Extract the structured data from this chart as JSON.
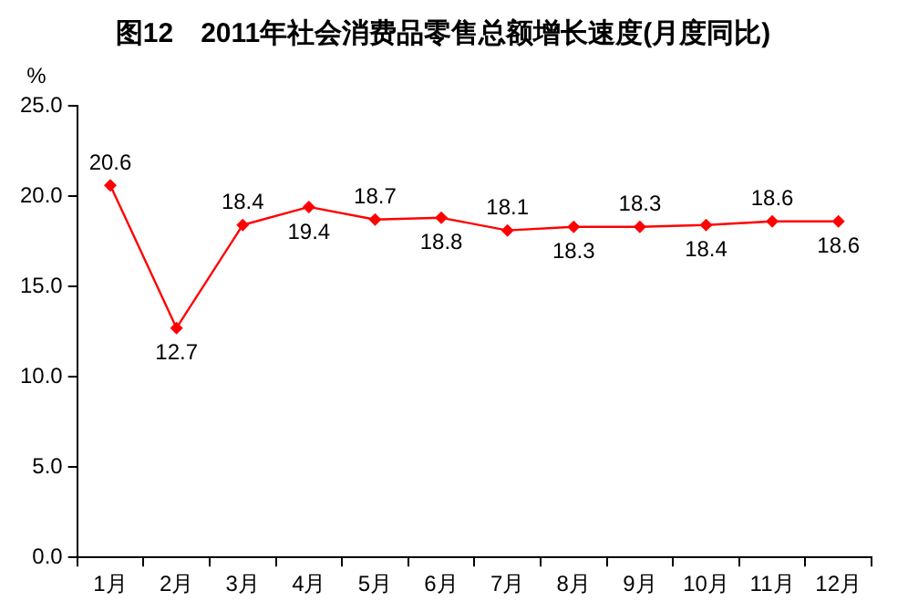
{
  "chart_data": {
    "type": "line",
    "title": "图12　2011年社会消费品零售总额增长速度(月度同比)",
    "ylabel": "%",
    "categories": [
      "1月",
      "2月",
      "3月",
      "4月",
      "5月",
      "6月",
      "7月",
      "8月",
      "9月",
      "10月",
      "11月",
      "12月"
    ],
    "series": [
      {
        "color": "#ff0000",
        "values": [
          20.6,
          12.7,
          18.4,
          19.4,
          18.7,
          18.8,
          18.1,
          18.3,
          18.3,
          18.4,
          18.6,
          18.6
        ]
      }
    ],
    "ylim": [
      0,
      25
    ],
    "yticks": [
      {
        "value": 0,
        "label": "0.0"
      },
      {
        "value": 5,
        "label": "5.0"
      },
      {
        "value": 10,
        "label": "10.0"
      },
      {
        "value": 15,
        "label": "15.0"
      },
      {
        "value": 20,
        "label": "20.0"
      },
      {
        "value": 25,
        "label": "25.0"
      }
    ],
    "grid": false,
    "legend": false,
    "marker": "diamond",
    "line_style": "solid",
    "data_labels": true
  }
}
